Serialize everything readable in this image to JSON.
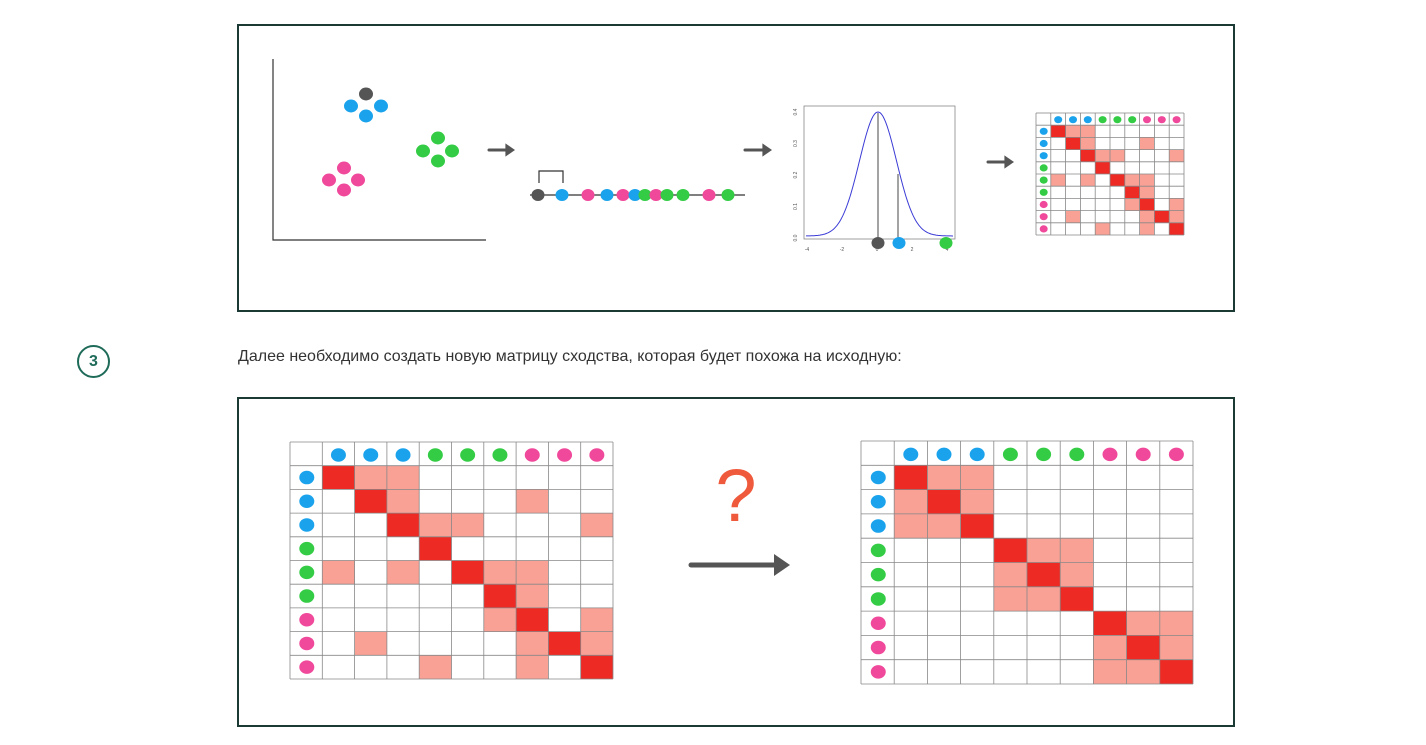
{
  "step": {
    "number": "3",
    "text": "Далее необходимо создать новую матрицу сходства, которая будет похожа на исходную:"
  },
  "second_figure": {
    "question_mark": "?"
  },
  "colors": {
    "frame_border": "#1b3a34",
    "accent": "#1f6b59",
    "gray": "#555555",
    "blue": "#1aa3ec",
    "green": "#33cc44",
    "pink": "#f0489a",
    "strong": "#ee2a24",
    "weak": "#f9a195",
    "curve": "#3b3bd6"
  },
  "groups": [
    "blue",
    "blue",
    "blue",
    "green",
    "green",
    "green",
    "pink",
    "pink",
    "pink"
  ],
  "matrix_original": {
    "strong": [
      [
        0,
        0
      ],
      [
        1,
        1
      ],
      [
        2,
        2
      ],
      [
        3,
        3
      ],
      [
        4,
        4
      ],
      [
        5,
        5
      ],
      [
        6,
        6
      ],
      [
        7,
        7
      ],
      [
        8,
        8
      ]
    ],
    "weak": [
      [
        0,
        1
      ],
      [
        0,
        2
      ],
      [
        1,
        2
      ],
      [
        1,
        6
      ],
      [
        2,
        3
      ],
      [
        2,
        4
      ],
      [
        2,
        8
      ],
      [
        4,
        0
      ],
      [
        4,
        2
      ],
      [
        4,
        5
      ],
      [
        4,
        6
      ],
      [
        5,
        6
      ],
      [
        6,
        5
      ],
      [
        6,
        8
      ],
      [
        7,
        1
      ],
      [
        7,
        6
      ],
      [
        7,
        8
      ],
      [
        8,
        3
      ],
      [
        8,
        6
      ]
    ]
  },
  "matrix_clustered": {
    "strong": [
      [
        0,
        0
      ],
      [
        1,
        1
      ],
      [
        2,
        2
      ],
      [
        3,
        3
      ],
      [
        4,
        4
      ],
      [
        5,
        5
      ],
      [
        6,
        6
      ],
      [
        7,
        7
      ],
      [
        8,
        8
      ]
    ],
    "weak": [
      [
        0,
        1
      ],
      [
        0,
        2
      ],
      [
        1,
        0
      ],
      [
        1,
        2
      ],
      [
        2,
        0
      ],
      [
        2,
        1
      ],
      [
        3,
        4
      ],
      [
        3,
        5
      ],
      [
        4,
        3
      ],
      [
        4,
        5
      ],
      [
        5,
        3
      ],
      [
        5,
        4
      ],
      [
        6,
        7
      ],
      [
        6,
        8
      ],
      [
        7,
        6
      ],
      [
        7,
        8
      ],
      [
        8,
        6
      ],
      [
        8,
        7
      ]
    ]
  },
  "distribution_plot": {
    "x_ticks": [
      "-4",
      "-2",
      "0",
      "2",
      "4"
    ],
    "y_ticks": [
      "0.0",
      "0.1",
      "0.2",
      "0.3",
      "0.4"
    ]
  }
}
